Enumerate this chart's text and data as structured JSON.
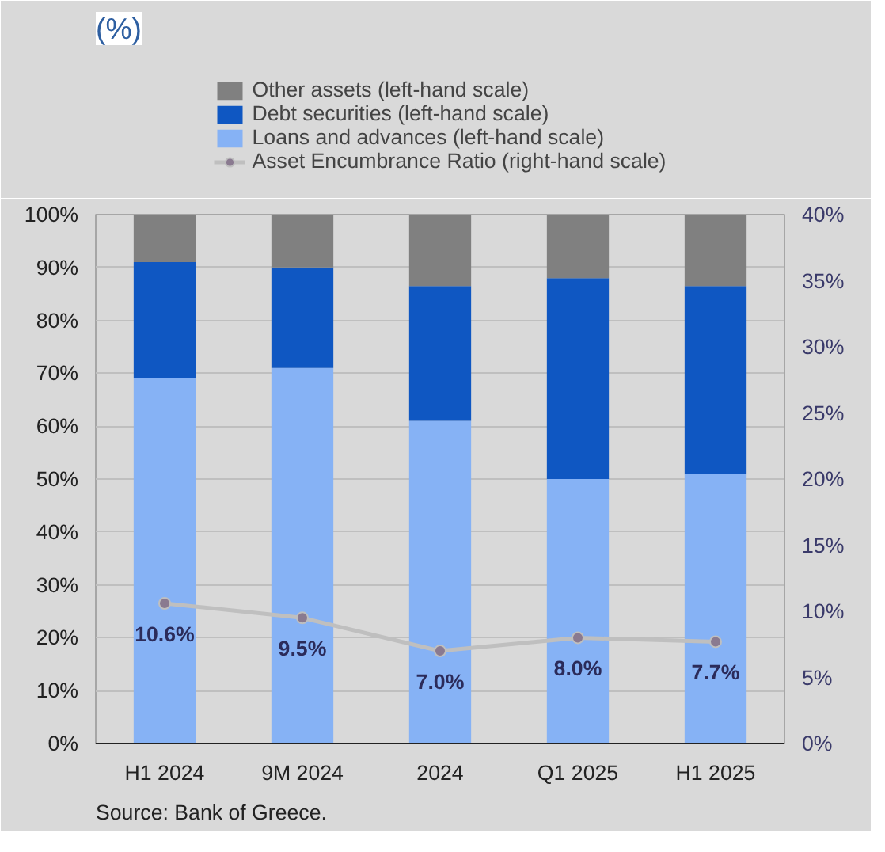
{
  "chart_data": {
    "type": "bar",
    "stacked": true,
    "title": "(%)",
    "categories": [
      "H1 2024",
      "9M 2024",
      "2024",
      "Q1 2025",
      "H1 2025"
    ],
    "series": [
      {
        "name": "Loans and advances (left-hand scale)",
        "color": "#86b2f5",
        "values": [
          69,
          71,
          61,
          50,
          51
        ]
      },
      {
        "name": "Debt securities (left-hand scale)",
        "color": "#0f57c2",
        "values": [
          22,
          19,
          25.5,
          38,
          35.5
        ]
      },
      {
        "name": "Other assets (left-hand scale)",
        "color": "#808080",
        "values": [
          9,
          10,
          13.5,
          12,
          13.5
        ]
      },
      {
        "name": "Asset Encumbrance Ratio (right-hand scale)",
        "type": "line",
        "axis": "y2",
        "color": "#bfbfbf",
        "marker": "circle",
        "line_style": "solid",
        "values": [
          10.6,
          9.5,
          7.0,
          8.0,
          7.7
        ],
        "value_labels": [
          "10.6%",
          "9.5%",
          "7.0%",
          "8.0%",
          "7.7%"
        ]
      }
    ],
    "ylim": [
      0,
      100
    ],
    "yticks": [
      {
        "value": 0,
        "label": "0%"
      },
      {
        "value": 10,
        "label": "10%"
      },
      {
        "value": 20,
        "label": "20%"
      },
      {
        "value": 30,
        "label": "30%"
      },
      {
        "value": 40,
        "label": "40%"
      },
      {
        "value": 50,
        "label": "50%"
      },
      {
        "value": 60,
        "label": "60%"
      },
      {
        "value": 70,
        "label": "70%"
      },
      {
        "value": 80,
        "label": "80%"
      },
      {
        "value": 90,
        "label": "90%"
      },
      {
        "value": 100,
        "label": "100%"
      }
    ],
    "y2lim": [
      0,
      40
    ],
    "y2ticks": [
      {
        "value": 0,
        "label": "0%"
      },
      {
        "value": 5,
        "label": "5%"
      },
      {
        "value": 10,
        "label": "10%"
      },
      {
        "value": 15,
        "label": "15%"
      },
      {
        "value": 20,
        "label": "20%"
      },
      {
        "value": 25,
        "label": "25%"
      },
      {
        "value": 30,
        "label": "30%"
      },
      {
        "value": 35,
        "label": "35%"
      },
      {
        "value": 40,
        "label": "40%"
      }
    ],
    "grid": "y",
    "legend": "top",
    "annotations": [
      "Source: Bank of Greece."
    ]
  }
}
